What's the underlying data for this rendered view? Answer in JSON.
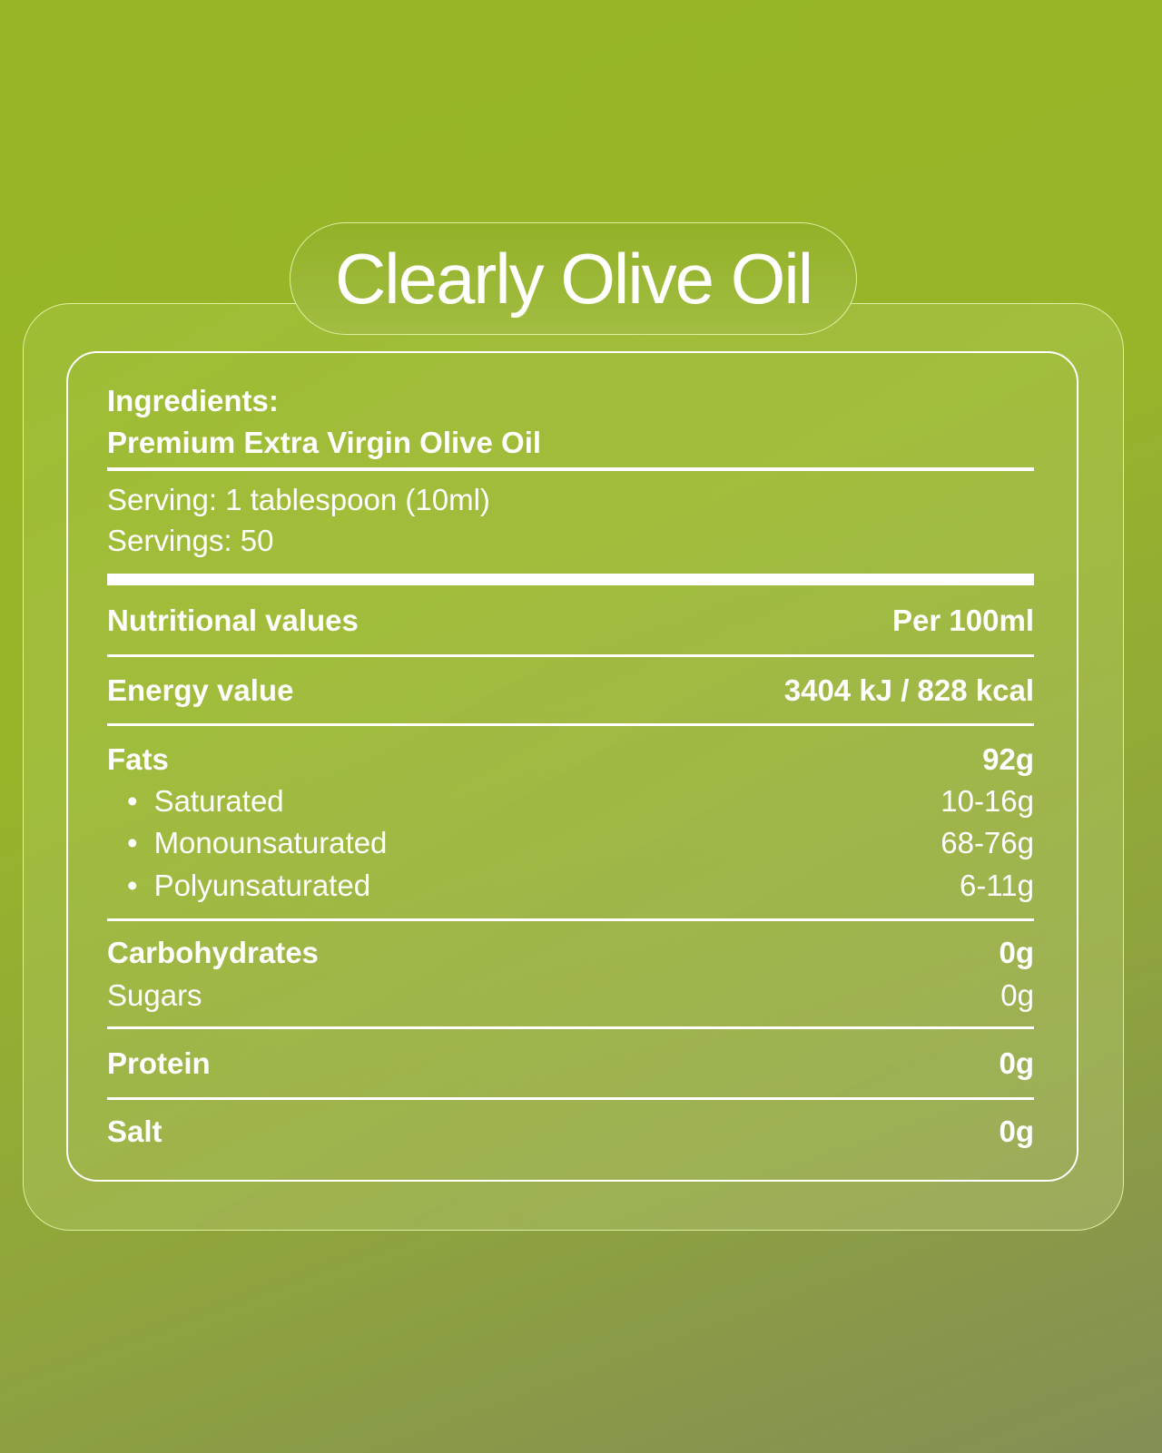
{
  "title": "Clearly Olive Oil",
  "ingredients": {
    "label": "Ingredients:",
    "value": "Premium Extra Virgin Olive Oil"
  },
  "serving": {
    "size": "Serving: 1 tablespoon (10ml)",
    "count": "Servings: 50"
  },
  "header": {
    "label": "Nutritional values",
    "unit": "Per 100ml"
  },
  "rows": [
    {
      "label": "Energy value",
      "value": "3404 kJ / 828 kcal"
    },
    {
      "label": "Fats",
      "value": "92g"
    },
    {
      "label": "Saturated",
      "value": "10-16g"
    },
    {
      "label": "Monounsaturated",
      "value": "68-76g"
    },
    {
      "label": "Polyunsaturated",
      "value": "6-11g"
    },
    {
      "label": "Carbohydrates",
      "value": "0g"
    },
    {
      "label": "Sugars",
      "value": "0g"
    },
    {
      "label": "Protein",
      "value": "0g"
    },
    {
      "label": "Salt",
      "value": "0g"
    }
  ]
}
